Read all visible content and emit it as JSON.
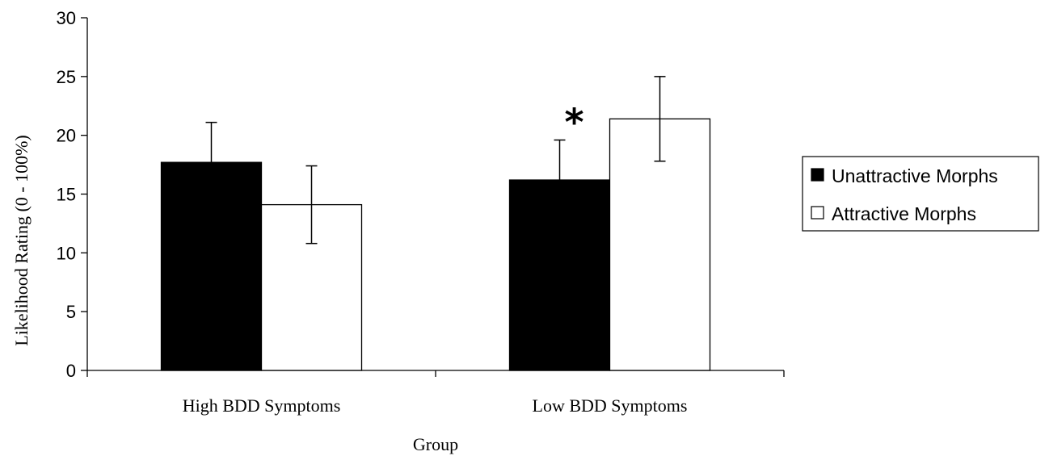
{
  "chart_data": {
    "type": "bar",
    "categories": [
      "High BDD Symptoms",
      "Low BDD Symptoms"
    ],
    "series": [
      {
        "name": "Unattractive Morphs",
        "values": [
          17.7,
          16.2
        ],
        "errors": [
          3.4,
          3.4
        ],
        "color": "#000000"
      },
      {
        "name": "Attractive Morphs",
        "values": [
          14.1,
          21.4
        ],
        "errors": [
          3.3,
          3.6
        ],
        "color": "#ffffff"
      }
    ],
    "xlabel": "Group",
    "ylabel": "Likelihood Rating (0 - 100%)",
    "ylim": [
      0,
      30
    ],
    "yticks": [
      0,
      5,
      10,
      15,
      20,
      25,
      30
    ],
    "annotations": [
      {
        "text": "*",
        "category": "Low BDD Symptoms",
        "series": "Unattractive Morphs"
      }
    ],
    "legend_position": "right",
    "grid": false
  }
}
